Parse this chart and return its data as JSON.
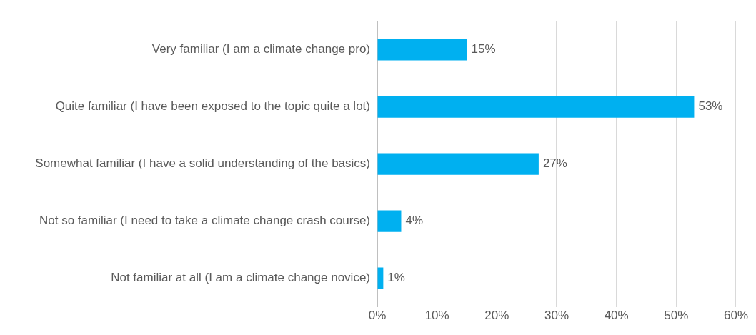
{
  "chart_data": {
    "type": "bar",
    "orientation": "horizontal",
    "categories": [
      "Very familiar (I am a climate change pro)",
      "Quite familiar (I have been exposed to the topic quite a lot)",
      "Somewhat familiar (I have a solid understanding of the basics)",
      "Not so familiar (I need to take a climate change crash course)",
      "Not familiar at all (I am a climate change novice)"
    ],
    "values": [
      15,
      53,
      27,
      4,
      1
    ],
    "value_labels": [
      "15%",
      "53%",
      "27%",
      "4%",
      "1%"
    ],
    "color": "#00b0f0",
    "xlim": [
      0,
      60
    ],
    "xticks": [
      {
        "value": 0,
        "label": "0%"
      },
      {
        "value": 10,
        "label": "10%"
      },
      {
        "value": 20,
        "label": "20%"
      },
      {
        "value": 30,
        "label": "30%"
      },
      {
        "value": 40,
        "label": "40%"
      },
      {
        "value": 50,
        "label": "50%"
      },
      {
        "value": 60,
        "label": "60%"
      }
    ],
    "grid": "x",
    "legend": false
  }
}
